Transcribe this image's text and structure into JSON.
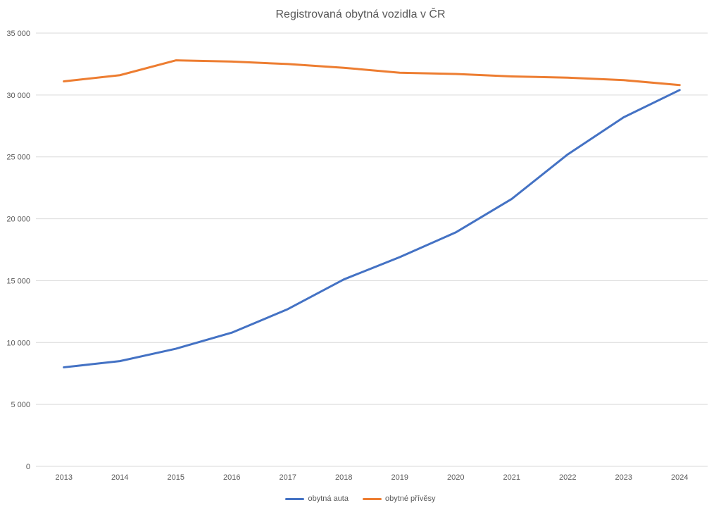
{
  "chart_data": {
    "type": "line",
    "title": "Registrovaná obytná vozidla v ČR",
    "categories": [
      "2013",
      "2014",
      "2015",
      "2016",
      "2017",
      "2018",
      "2019",
      "2020",
      "2021",
      "2022",
      "2023",
      "2024"
    ],
    "series": [
      {
        "name": "obytná auta",
        "color": "#4472C4",
        "values": [
          8000,
          8500,
          9500,
          10800,
          12700,
          15100,
          16900,
          18900,
          21600,
          25200,
          28200,
          30400
        ]
      },
      {
        "name": "obytné přívěsy",
        "color": "#ED7D31",
        "values": [
          31100,
          31600,
          32800,
          32700,
          32500,
          32200,
          31800,
          31700,
          31500,
          31400,
          31200,
          30800
        ]
      }
    ],
    "xlabel": "",
    "ylabel": "",
    "ylim": [
      0,
      35000
    ],
    "ytick_step": 5000,
    "ytick_labels": [
      "0",
      "5 000",
      "10 000",
      "15 000",
      "20 000",
      "25 000",
      "30 000",
      "35 000"
    ],
    "grid": "horizontal",
    "legend_position": "bottom"
  },
  "colors": {
    "background": "#FFFFFF",
    "text": "#595959",
    "gridline": "#D9D9D9",
    "series_blue": "#4472C4",
    "series_orange": "#ED7D31"
  }
}
